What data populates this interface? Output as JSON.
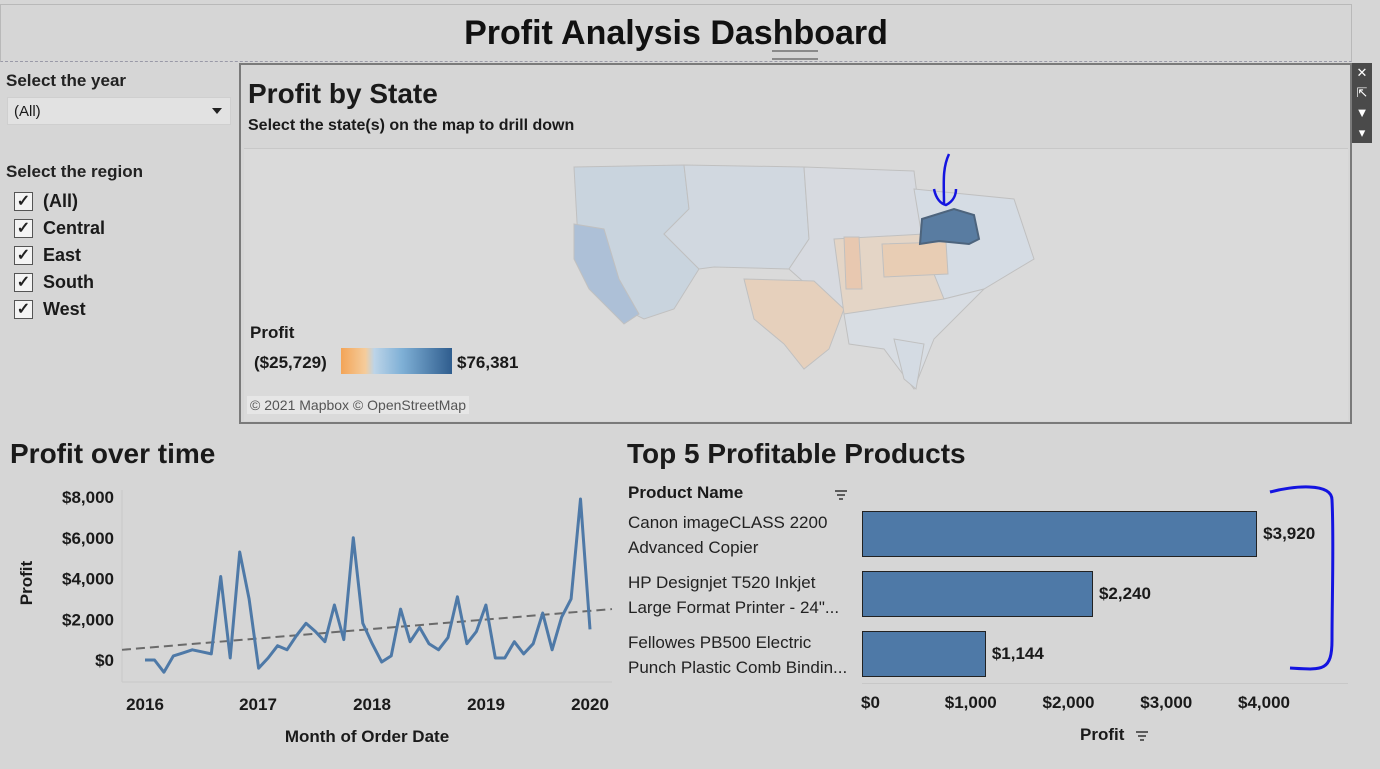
{
  "dashboard": {
    "title": "Profit Analysis Dashboard"
  },
  "filters": {
    "year": {
      "title": "Select the year",
      "value": "(All)"
    },
    "region": {
      "title": "Select the region",
      "options": [
        {
          "label": "(All)",
          "checked": true
        },
        {
          "label": "Central",
          "checked": true
        },
        {
          "label": "East",
          "checked": true
        },
        {
          "label": "South",
          "checked": true
        },
        {
          "label": "West",
          "checked": true
        }
      ]
    }
  },
  "map": {
    "title": "Profit by State",
    "subtitle": "Select the state(s) on the map to drill down",
    "legend": {
      "title": "Profit",
      "min": "($25,729)",
      "max": "$76,381"
    },
    "copyright": "© 2021 Mapbox © OpenStreetMap",
    "toolbar": [
      "close-icon",
      "popout-icon",
      "filter-icon",
      "more-icon"
    ]
  },
  "colors": {
    "positive": "#2f5d8e",
    "negative": "#f3a457",
    "bar": "#4e79a7",
    "line": "#4e79a7",
    "annotation": "#1414e0"
  },
  "chart_data": [
    {
      "type": "line",
      "title": "Profit over time",
      "xlabel": "Month of Order Date",
      "ylabel": "Profit",
      "x_ticks": [
        "2016",
        "2017",
        "2018",
        "2019",
        "2020"
      ],
      "y_ticks": [
        "$8,000",
        "$6,000",
        "$4,000",
        "$2,000",
        "$0"
      ],
      "ylim": [
        -1000,
        8500
      ],
      "trend_line": {
        "start": 500,
        "end": 2500
      },
      "series": [
        {
          "values": [
            0,
            0,
            -600,
            200,
            350,
            500,
            400,
            300,
            4100,
            100,
            5300,
            3000,
            -400,
            100,
            700,
            500,
            1200,
            1800,
            1400,
            900,
            2700,
            1000,
            6000,
            1800,
            800,
            -100,
            200,
            2500,
            900,
            1600,
            800,
            500,
            1100,
            3100,
            800,
            1400,
            2700,
            100,
            100,
            900,
            300,
            800,
            2300,
            500,
            2100,
            3000,
            7900,
            1500
          ]
        }
      ]
    },
    {
      "type": "bar",
      "title": "Top 5 Profitable Products",
      "column_header": "Product Name",
      "xlabel": "Profit",
      "x_ticks": [
        "$0",
        "$1,000",
        "$2,000",
        "$3,000",
        "$4,000"
      ],
      "xlim": [
        0,
        4500
      ],
      "categories": [
        [
          "Canon imageCLASS 2200",
          "Advanced Copier"
        ],
        [
          "HP Designjet T520 Inkjet",
          "Large Format Printer - 24\"..."
        ],
        [
          "Fellowes PB500 Electric",
          "Punch Plastic Comb Bindin..."
        ]
      ],
      "values": [
        3920,
        2240,
        1144
      ],
      "labels": [
        "$3,920",
        "$2,240",
        "$1,144"
      ]
    }
  ]
}
